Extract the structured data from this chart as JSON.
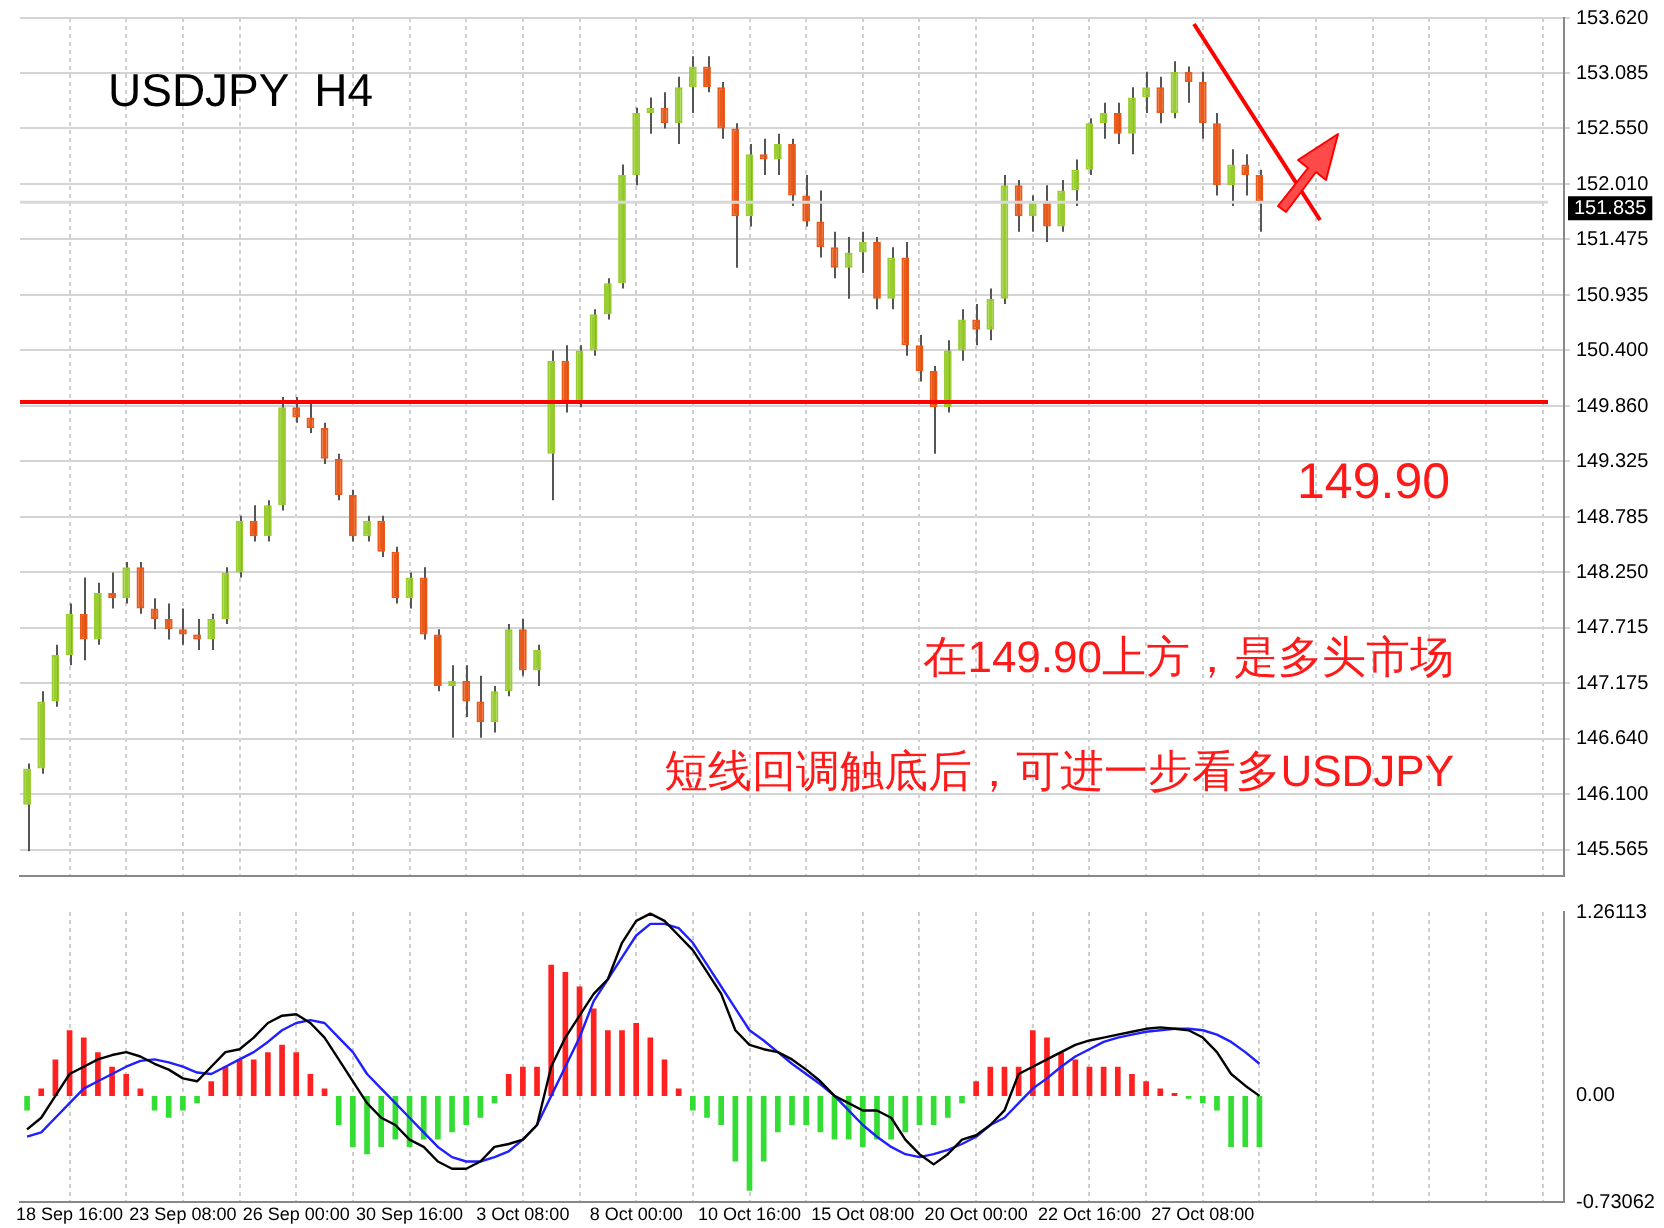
{
  "chart_data": [
    {
      "type": "candlestick",
      "title": "USDJPY  H4",
      "categories": [
        null,
        null,
        null,
        null,
        null,
        null,
        null,
        null,
        null,
        null,
        null,
        null,
        null,
        null,
        null,
        null,
        null,
        null,
        null,
        null,
        null,
        null,
        null,
        null,
        null,
        null,
        null,
        null,
        null,
        null,
        null,
        null,
        null,
        null,
        null,
        null,
        null,
        null,
        null,
        null,
        null,
        null,
        null,
        null,
        null,
        null,
        null,
        null,
        null,
        null,
        null,
        null,
        null,
        null,
        null,
        null,
        null,
        null,
        null,
        null,
        null,
        null,
        null,
        null,
        null,
        null,
        null,
        null,
        null,
        null,
        null,
        null,
        null,
        null,
        null,
        null,
        null,
        null,
        null,
        null,
        null,
        null,
        null,
        null,
        null,
        null,
        null,
        null,
        null,
        null,
        null,
        null,
        null,
        null,
        null,
        null,
        null,
        null,
        null,
        null,
        null,
        null,
        null,
        null,
        null,
        null,
        null,
        null,
        null
      ],
      "ohlc": [
        [
          146.0,
          146.4,
          145.55,
          146.35
        ],
        [
          146.35,
          147.1,
          146.3,
          147.0
        ],
        [
          147.0,
          147.55,
          146.95,
          147.45
        ],
        [
          147.45,
          147.95,
          147.35,
          147.85
        ],
        [
          147.85,
          148.2,
          147.4,
          147.6
        ],
        [
          147.6,
          148.15,
          147.55,
          148.05
        ],
        [
          148.05,
          148.25,
          147.9,
          148.0
        ],
        [
          148.0,
          148.35,
          147.95,
          148.3
        ],
        [
          148.3,
          148.35,
          147.85,
          147.9
        ],
        [
          147.9,
          148.0,
          147.7,
          147.8
        ],
        [
          147.8,
          147.95,
          147.6,
          147.7
        ],
        [
          147.7,
          147.9,
          147.55,
          147.65
        ],
        [
          147.65,
          147.8,
          147.5,
          147.6
        ],
        [
          147.6,
          147.85,
          147.5,
          147.8
        ],
        [
          147.8,
          148.3,
          147.75,
          148.25
        ],
        [
          148.25,
          148.8,
          148.2,
          148.75
        ],
        [
          148.75,
          148.9,
          148.55,
          148.6
        ],
        [
          148.6,
          148.95,
          148.55,
          148.9
        ],
        [
          148.9,
          149.95,
          148.85,
          149.85
        ],
        [
          149.85,
          149.95,
          149.7,
          149.75
        ],
        [
          149.75,
          149.9,
          149.6,
          149.65
        ],
        [
          149.65,
          149.7,
          149.3,
          149.35
        ],
        [
          149.35,
          149.4,
          148.95,
          149.0
        ],
        [
          149.0,
          149.05,
          148.55,
          148.6
        ],
        [
          148.6,
          148.8,
          148.55,
          148.75
        ],
        [
          148.75,
          148.8,
          148.4,
          148.45
        ],
        [
          148.45,
          148.5,
          147.95,
          148.0
        ],
        [
          148.0,
          148.25,
          147.9,
          148.2
        ],
        [
          148.2,
          148.3,
          147.6,
          147.65
        ],
        [
          147.65,
          147.7,
          147.1,
          147.15
        ],
        [
          147.15,
          147.35,
          146.65,
          147.2
        ],
        [
          147.2,
          147.35,
          146.85,
          147.0
        ],
        [
          147.0,
          147.25,
          146.65,
          146.8
        ],
        [
          146.8,
          147.15,
          146.7,
          147.1
        ],
        [
          147.1,
          147.75,
          147.05,
          147.7
        ],
        [
          147.7,
          147.8,
          147.25,
          147.3
        ],
        [
          147.3,
          147.55,
          147.15,
          147.5
        ],
        [
          149.4,
          150.4,
          148.95,
          150.3
        ],
        [
          150.3,
          150.45,
          149.8,
          149.9
        ],
        [
          149.9,
          150.45,
          149.85,
          150.4
        ],
        [
          150.4,
          150.8,
          150.35,
          150.75
        ],
        [
          150.75,
          151.1,
          150.7,
          151.05
        ],
        [
          151.05,
          152.2,
          151.0,
          152.1
        ],
        [
          152.1,
          152.75,
          152.0,
          152.7
        ],
        [
          152.7,
          152.85,
          152.5,
          152.75
        ],
        [
          152.75,
          152.9,
          152.55,
          152.6
        ],
        [
          152.6,
          153.05,
          152.4,
          152.95
        ],
        [
          152.95,
          153.25,
          152.7,
          153.15
        ],
        [
          153.15,
          153.25,
          152.9,
          152.95
        ],
        [
          152.95,
          153.0,
          152.45,
          152.55
        ],
        [
          152.55,
          152.6,
          151.2,
          151.7
        ],
        [
          151.7,
          152.4,
          151.6,
          152.3
        ],
        [
          152.3,
          152.45,
          152.1,
          152.25
        ],
        [
          152.25,
          152.5,
          152.1,
          152.4
        ],
        [
          152.4,
          152.45,
          151.8,
          151.9
        ],
        [
          151.9,
          152.1,
          151.6,
          151.65
        ],
        [
          151.65,
          151.95,
          151.3,
          151.4
        ],
        [
          151.4,
          151.55,
          151.1,
          151.2
        ],
        [
          151.2,
          151.5,
          150.9,
          151.35
        ],
        [
          151.35,
          151.55,
          151.15,
          151.45
        ],
        [
          151.45,
          151.5,
          150.8,
          150.9
        ],
        [
          150.9,
          151.4,
          150.8,
          151.3
        ],
        [
          151.3,
          151.45,
          150.35,
          150.45
        ],
        [
          150.45,
          150.55,
          150.1,
          150.2
        ],
        [
          150.2,
          150.25,
          149.4,
          149.85
        ],
        [
          149.85,
          150.5,
          149.8,
          150.4
        ],
        [
          150.4,
          150.8,
          150.3,
          150.7
        ],
        [
          150.7,
          150.85,
          150.45,
          150.6
        ],
        [
          150.6,
          151.0,
          150.5,
          150.9
        ],
        [
          150.9,
          152.1,
          150.85,
          152.0
        ],
        [
          152.0,
          152.05,
          151.55,
          151.7
        ],
        [
          151.7,
          151.9,
          151.55,
          151.85
        ],
        [
          151.85,
          152.0,
          151.45,
          151.6
        ],
        [
          151.6,
          152.05,
          151.55,
          151.95
        ],
        [
          151.95,
          152.25,
          151.8,
          152.15
        ],
        [
          152.15,
          152.65,
          152.1,
          152.6
        ],
        [
          152.6,
          152.8,
          152.45,
          152.7
        ],
        [
          152.7,
          152.8,
          152.4,
          152.5
        ],
        [
          152.5,
          152.95,
          152.3,
          152.85
        ],
        [
          152.85,
          153.1,
          152.7,
          152.95
        ],
        [
          152.95,
          153.05,
          152.6,
          152.7
        ],
        [
          152.7,
          153.2,
          152.65,
          153.1
        ],
        [
          153.1,
          153.15,
          152.8,
          153.0
        ],
        [
          153.0,
          153.1,
          152.45,
          152.6
        ],
        [
          152.6,
          152.7,
          151.9,
          152.0
        ],
        [
          152.0,
          152.35,
          151.8,
          152.2
        ],
        [
          152.2,
          152.3,
          151.9,
          152.1
        ],
        [
          152.1,
          152.15,
          151.55,
          151.84
        ],
        null,
        null,
        null,
        null,
        null,
        null,
        null,
        null,
        null,
        null,
        null,
        null,
        null,
        null,
        null,
        null,
        null,
        null,
        null,
        null,
        null
      ],
      "colors": [
        "#9acd32",
        "#9acd32",
        "#9acd32",
        "#9acd32",
        "#e8591a",
        "#9acd32",
        "#e8591a",
        "#9acd32",
        "#e8591a",
        "#e8591a",
        "#e8591a",
        "#e8591a",
        "#e8591a",
        "#9acd32",
        "#9acd32",
        "#9acd32",
        "#e8591a",
        "#9acd32",
        "#9acd32",
        "#e8591a",
        "#e8591a",
        "#e8591a",
        "#e8591a",
        "#e8591a",
        "#9acd32",
        "#e8591a",
        "#e8591a",
        "#9acd32",
        "#e8591a",
        "#e8591a",
        "#9acd32",
        "#e8591a",
        "#e8591a",
        "#9acd32",
        "#9acd32",
        "#e8591a",
        "#9acd32",
        "#9acd32",
        "#e8591a",
        "#9acd32",
        "#9acd32",
        "#9acd32",
        "#9acd32",
        "#9acd32",
        "#9acd32",
        "#e8591a",
        "#9acd32",
        "#9acd32",
        "#e8591a",
        "#e8591a",
        "#e8591a",
        "#9acd32",
        "#e8591a",
        "#9acd32",
        "#e8591a",
        "#e8591a",
        "#e8591a",
        "#e8591a",
        "#9acd32",
        "#9acd32",
        "#e8591a",
        "#9acd32",
        "#e8591a",
        "#e8591a",
        "#e8591a",
        "#9acd32",
        "#9acd32",
        "#e8591a",
        "#9acd32",
        "#9acd32",
        "#e8591a",
        "#9acd32",
        "#e8591a",
        "#9acd32",
        "#9acd32",
        "#9acd32",
        "#9acd32",
        "#e8591a",
        "#9acd32",
        "#9acd32",
        "#e8591a",
        "#9acd32",
        "#e8591a",
        "#e8591a",
        "#e8591a",
        "#9acd32",
        "#e8591a",
        "#e8591a",
        null,
        null,
        null,
        null,
        null,
        null,
        null,
        null,
        null,
        null,
        null,
        null,
        null,
        null,
        null,
        null,
        null,
        null,
        null,
        null,
        null
      ],
      "ylim": [
        145.31,
        153.62
      ],
      "yticks": [
        {
          "value": 145.565,
          "label": "145.565"
        },
        {
          "value": 146.1,
          "label": "146.100"
        },
        {
          "value": 146.64,
          "label": "146.640"
        },
        {
          "value": 147.175,
          "label": "147.175"
        },
        {
          "value": 147.715,
          "label": "147.715"
        },
        {
          "value": 148.25,
          "label": "148.250"
        },
        {
          "value": 148.785,
          "label": "148.785"
        },
        {
          "value": 149.325,
          "label": "149.325"
        },
        {
          "value": 149.86,
          "label": "149.860"
        },
        {
          "value": 150.4,
          "label": "150.400"
        },
        {
          "value": 150.935,
          "label": "150.935"
        },
        {
          "value": 151.475,
          "label": "151.475"
        },
        {
          "value": 152.01,
          "label": "152.010"
        },
        {
          "value": 152.55,
          "label": "152.550"
        },
        {
          "value": 153.085,
          "label": "153.085"
        },
        {
          "value": 153.62,
          "label": "153.620"
        }
      ],
      "ref_lines": [
        {
          "axis": "y",
          "value": 149.9,
          "color": "#ff0000"
        },
        {
          "axis": "y",
          "value": 151.835,
          "label": "151.835",
          "color": "#d8d8d8"
        }
      ],
      "annotations": [
        {
          "text": "149.90",
          "y": 149.9
        },
        "在149.90上方，是多头市场",
        "短线回调触底后，可进一步看多USDJPY"
      ],
      "grid": true,
      "legend": false,
      "tick_labels": "y"
    },
    {
      "type": "bar",
      "categories": [
        null,
        null,
        null,
        "18 Sep 16:00",
        null,
        null,
        null,
        null,
        null,
        null,
        null,
        "23 Sep 08:00",
        null,
        null,
        null,
        null,
        null,
        null,
        null,
        "26 Sep 00:00",
        null,
        null,
        null,
        null,
        null,
        null,
        null,
        "30 Sep 16:00",
        null,
        null,
        null,
        null,
        null,
        null,
        null,
        "3 Oct 08:00",
        null,
        null,
        null,
        null,
        null,
        null,
        null,
        "8 Oct 00:00",
        null,
        null,
        null,
        null,
        null,
        null,
        null,
        "10 Oct 16:00",
        null,
        null,
        null,
        null,
        null,
        null,
        null,
        "15 Oct 08:00",
        null,
        null,
        null,
        null,
        null,
        null,
        null,
        "20 Oct 00:00",
        null,
        null,
        null,
        null,
        null,
        null,
        null,
        "22 Oct 16:00",
        null,
        null,
        null,
        null,
        null,
        null,
        null,
        "27 Oct 08:00",
        null,
        null,
        null,
        null,
        null,
        null,
        null,
        null,
        null,
        null,
        null,
        null,
        null,
        null,
        null,
        null,
        null,
        null,
        null,
        null,
        null,
        null,
        null,
        null,
        null
      ],
      "series": [
        {
          "type": "bar",
          "values": [
            -0.1,
            0.05,
            0.25,
            0.45,
            0.4,
            0.3,
            0.2,
            0.15,
            0.05,
            -0.1,
            -0.15,
            -0.1,
            -0.05,
            0.1,
            0.2,
            0.25,
            0.25,
            0.3,
            0.35,
            0.3,
            0.15,
            0.05,
            -0.2,
            -0.35,
            -0.4,
            -0.35,
            -0.3,
            -0.35,
            -0.3,
            -0.3,
            -0.25,
            -0.2,
            -0.15,
            -0.05,
            0.15,
            0.2,
            0.2,
            0.9,
            0.85,
            0.75,
            0.6,
            0.45,
            0.45,
            0.5,
            0.4,
            0.25,
            0.05,
            -0.1,
            -0.15,
            -0.2,
            -0.45,
            -0.65,
            -0.45,
            -0.25,
            -0.2,
            -0.2,
            -0.25,
            -0.3,
            -0.3,
            -0.35,
            -0.3,
            -0.3,
            -0.25,
            -0.2,
            -0.2,
            -0.15,
            -0.05,
            0.1,
            0.2,
            0.2,
            0.2,
            0.45,
            0.4,
            0.3,
            0.25,
            0.2,
            0.2,
            0.2,
            0.15,
            0.1,
            0.05,
            0.02,
            -0.02,
            -0.05,
            -0.1,
            -0.35,
            -0.35,
            -0.35,
            null,
            null,
            null,
            null,
            null,
            null,
            null,
            null,
            null,
            null,
            null,
            null,
            null,
            null,
            null,
            null,
            null,
            null,
            null,
            null,
            null
          ],
          "colors": [
            "#33dd33",
            "#ff2020",
            "#ff2020",
            "#ff2020",
            "#ff2020",
            "#ff2020",
            "#ff2020",
            "#ff2020",
            "#ff2020",
            "#33dd33",
            "#33dd33",
            "#33dd33",
            "#33dd33",
            "#ff2020",
            "#ff2020",
            "#ff2020",
            "#ff2020",
            "#ff2020",
            "#ff2020",
            "#ff2020",
            "#ff2020",
            "#ff2020",
            "#33dd33",
            "#33dd33",
            "#33dd33",
            "#33dd33",
            "#33dd33",
            "#33dd33",
            "#33dd33",
            "#33dd33",
            "#33dd33",
            "#33dd33",
            "#33dd33",
            "#33dd33",
            "#ff2020",
            "#ff2020",
            "#ff2020",
            "#ff2020",
            "#ff2020",
            "#ff2020",
            "#ff2020",
            "#ff2020",
            "#ff2020",
            "#ff2020",
            "#ff2020",
            "#ff2020",
            "#ff2020",
            "#33dd33",
            "#33dd33",
            "#33dd33",
            "#33dd33",
            "#33dd33",
            "#33dd33",
            "#33dd33",
            "#33dd33",
            "#33dd33",
            "#33dd33",
            "#33dd33",
            "#33dd33",
            "#33dd33",
            "#33dd33",
            "#33dd33",
            "#33dd33",
            "#33dd33",
            "#33dd33",
            "#33dd33",
            "#33dd33",
            "#ff2020",
            "#ff2020",
            "#ff2020",
            "#ff2020",
            "#ff2020",
            "#ff2020",
            "#ff2020",
            "#ff2020",
            "#ff2020",
            "#ff2020",
            "#ff2020",
            "#ff2020",
            "#ff2020",
            "#ff2020",
            "#ff2020",
            "#33dd33",
            "#33dd33",
            "#33dd33",
            "#33dd33",
            "#33dd33",
            "#33dd33",
            null,
            null,
            null,
            null,
            null,
            null,
            null,
            null,
            null,
            null,
            null,
            null,
            null,
            null,
            null,
            null,
            null,
            null,
            null,
            null,
            null
          ]
        },
        {
          "type": "line",
          "color": "#000000",
          "values": [
            -0.23,
            -0.15,
            0.0,
            0.15,
            0.2,
            0.25,
            0.28,
            0.3,
            0.27,
            0.22,
            0.18,
            0.12,
            0.1,
            0.2,
            0.3,
            0.32,
            0.4,
            0.5,
            0.55,
            0.56,
            0.5,
            0.4,
            0.25,
            0.1,
            -0.05,
            -0.15,
            -0.2,
            -0.3,
            -0.35,
            -0.45,
            -0.5,
            -0.5,
            -0.45,
            -0.35,
            -0.33,
            -0.3,
            -0.2,
            0.2,
            0.4,
            0.55,
            0.7,
            0.8,
            1.05,
            1.2,
            1.25,
            1.2,
            1.1,
            1.0,
            0.85,
            0.7,
            0.45,
            0.35,
            0.32,
            0.3,
            0.25,
            0.18,
            0.1,
            0.0,
            -0.05,
            -0.1,
            -0.1,
            -0.15,
            -0.3,
            -0.4,
            -0.47,
            -0.4,
            -0.3,
            -0.27,
            -0.2,
            -0.1,
            0.15,
            0.2,
            0.25,
            0.3,
            0.35,
            0.38,
            0.4,
            0.42,
            0.44,
            0.46,
            0.47,
            0.46,
            0.45,
            0.4,
            0.3,
            0.15,
            0.07,
            0.0,
            null,
            null,
            null,
            null,
            null,
            null,
            null,
            null,
            null,
            null,
            null,
            null,
            null,
            null,
            null,
            null,
            null,
            null,
            null,
            null,
            null
          ]
        },
        {
          "type": "line",
          "color": "#2020ff",
          "values": [
            -0.28,
            -0.25,
            -0.15,
            -0.05,
            0.05,
            0.1,
            0.15,
            0.2,
            0.24,
            0.25,
            0.23,
            0.2,
            0.16,
            0.15,
            0.2,
            0.25,
            0.3,
            0.37,
            0.45,
            0.5,
            0.52,
            0.5,
            0.4,
            0.3,
            0.15,
            0.05,
            -0.05,
            -0.15,
            -0.25,
            -0.35,
            -0.42,
            -0.45,
            -0.45,
            -0.42,
            -0.38,
            -0.3,
            -0.2,
            0.0,
            0.2,
            0.4,
            0.65,
            0.8,
            0.95,
            1.1,
            1.18,
            1.18,
            1.15,
            1.05,
            0.9,
            0.75,
            0.6,
            0.45,
            0.38,
            0.3,
            0.22,
            0.15,
            0.08,
            0.0,
            -0.1,
            -0.2,
            -0.28,
            -0.35,
            -0.4,
            -0.42,
            -0.4,
            -0.37,
            -0.33,
            -0.28,
            -0.2,
            -0.15,
            -0.05,
            0.05,
            0.12,
            0.2,
            0.27,
            0.32,
            0.37,
            0.4,
            0.42,
            0.44,
            0.45,
            0.46,
            0.46,
            0.45,
            0.42,
            0.37,
            0.3,
            0.22,
            null,
            null,
            null,
            null,
            null,
            null,
            null,
            null,
            null,
            null,
            null,
            null,
            null,
            null,
            null,
            null,
            null,
            null,
            null,
            null,
            null
          ]
        }
      ],
      "ylim": [
        -0.73062,
        1.26113
      ],
      "yticks": [
        1.26113,
        {
          "value": 0,
          "label": "0.00"
        },
        -0.73062
      ],
      "grid": "x",
      "legend": false
    }
  ]
}
